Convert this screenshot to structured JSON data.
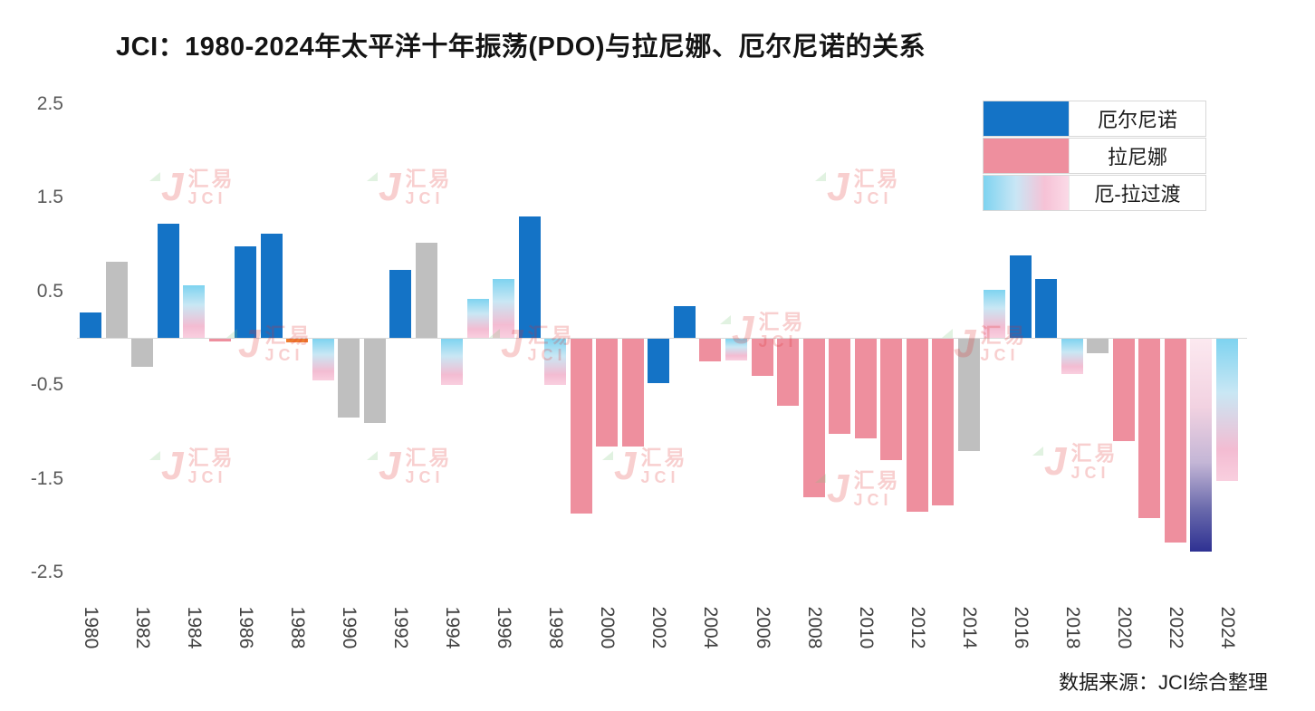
{
  "title": "JCI：1980-2024年太平洋十年振荡(PDO)与拉尼娜、厄尔尼诺的关系",
  "source_note": "数据来源：JCI综合整理",
  "watermark": {
    "j": "J",
    "brand": "汇易",
    "sub": "JCI"
  },
  "legend": {
    "items": [
      {
        "label": "厄尔尼诺",
        "type": "elnino"
      },
      {
        "label": "拉尼娜",
        "type": "lanina"
      },
      {
        "label": "厄-拉过渡",
        "type": "transition"
      }
    ]
  },
  "colors": {
    "elnino_blue": "#1473C6",
    "lanina_pink": "#EE8F9E",
    "neutral_gray": "#BFBFBF",
    "transition_blue": "#7ED3F0",
    "transition_pink": "#F6C2D6",
    "deep_navy": "#2E3192",
    "orange": "#ED7D31"
  },
  "chart_data": {
    "type": "bar",
    "title": "JCI：1980-2024年太平洋十年振荡(PDO)与拉尼娜、厄尔尼诺的关系",
    "ylim": [
      -2.5,
      2.5
    ],
    "yticks": [
      "2.5",
      "1.5",
      "0.5",
      "-0.5",
      "-1.5",
      "-2.5"
    ],
    "xticks": [
      "1980",
      "1982",
      "1984",
      "1986",
      "1988",
      "1990",
      "1992",
      "1994",
      "1996",
      "1998",
      "2000",
      "2002",
      "2004",
      "2006",
      "2008",
      "2010",
      "2012",
      "2014",
      "2016",
      "2018",
      "2020",
      "2022",
      "2024"
    ],
    "legend_position": "top-right",
    "grid": false,
    "bars": [
      {
        "year": 1980,
        "value": 0.28,
        "type": "elnino"
      },
      {
        "year": 1981,
        "value": 0.82,
        "type": "neutral"
      },
      {
        "year": 1982,
        "value": -0.3,
        "type": "neutral"
      },
      {
        "year": 1983,
        "value": 1.22,
        "type": "elnino"
      },
      {
        "year": 1984,
        "value": 0.57,
        "type": "transition"
      },
      {
        "year": 1985,
        "value": -0.03,
        "type": "lanina"
      },
      {
        "year": 1986,
        "value": 0.98,
        "type": "elnino"
      },
      {
        "year": 1987,
        "value": 1.12,
        "type": "elnino"
      },
      {
        "year": 1988,
        "value": -0.04,
        "type": "orange"
      },
      {
        "year": 1989,
        "value": -0.45,
        "type": "transition"
      },
      {
        "year": 1990,
        "value": -0.85,
        "type": "neutral"
      },
      {
        "year": 1991,
        "value": -0.9,
        "type": "neutral"
      },
      {
        "year": 1992,
        "value": 0.73,
        "type": "elnino"
      },
      {
        "year": 1993,
        "value": 1.02,
        "type": "neutral"
      },
      {
        "year": 1994,
        "value": -0.5,
        "type": "transition"
      },
      {
        "year": 1995,
        "value": 0.42,
        "type": "transition"
      },
      {
        "year": 1996,
        "value": 0.63,
        "type": "transition"
      },
      {
        "year": 1997,
        "value": 1.3,
        "type": "elnino"
      },
      {
        "year": 1998,
        "value": -0.5,
        "type": "transition"
      },
      {
        "year": 1999,
        "value": -1.87,
        "type": "lanina"
      },
      {
        "year": 2000,
        "value": -1.15,
        "type": "lanina"
      },
      {
        "year": 2001,
        "value": -1.15,
        "type": "lanina"
      },
      {
        "year": 2002,
        "value": -0.48,
        "type": "elnino"
      },
      {
        "year": 2003,
        "value": 0.34,
        "type": "elnino"
      },
      {
        "year": 2004,
        "value": -0.25,
        "type": "lanina"
      },
      {
        "year": 2005,
        "value": -0.24,
        "type": "transition"
      },
      {
        "year": 2006,
        "value": -0.4,
        "type": "lanina"
      },
      {
        "year": 2007,
        "value": -0.72,
        "type": "lanina"
      },
      {
        "year": 2008,
        "value": -1.7,
        "type": "lanina"
      },
      {
        "year": 2009,
        "value": -1.02,
        "type": "lanina"
      },
      {
        "year": 2010,
        "value": -1.07,
        "type": "lanina"
      },
      {
        "year": 2011,
        "value": -1.3,
        "type": "lanina"
      },
      {
        "year": 2012,
        "value": -1.85,
        "type": "lanina"
      },
      {
        "year": 2013,
        "value": -1.78,
        "type": "lanina"
      },
      {
        "year": 2014,
        "value": -1.2,
        "type": "neutral"
      },
      {
        "year": 2015,
        "value": 0.52,
        "type": "transition"
      },
      {
        "year": 2016,
        "value": 0.88,
        "type": "elnino"
      },
      {
        "year": 2017,
        "value": 0.63,
        "type": "elnino"
      },
      {
        "year": 2018,
        "value": -0.38,
        "type": "transition"
      },
      {
        "year": 2019,
        "value": -0.16,
        "type": "neutral"
      },
      {
        "year": 2020,
        "value": -1.1,
        "type": "lanina"
      },
      {
        "year": 2021,
        "value": -1.92,
        "type": "lanina"
      },
      {
        "year": 2022,
        "value": -2.18,
        "type": "lanina"
      },
      {
        "year": 2023,
        "value": -2.28,
        "type": "transition_navy"
      },
      {
        "year": 2024,
        "value": -1.52,
        "type": "transition"
      }
    ]
  }
}
